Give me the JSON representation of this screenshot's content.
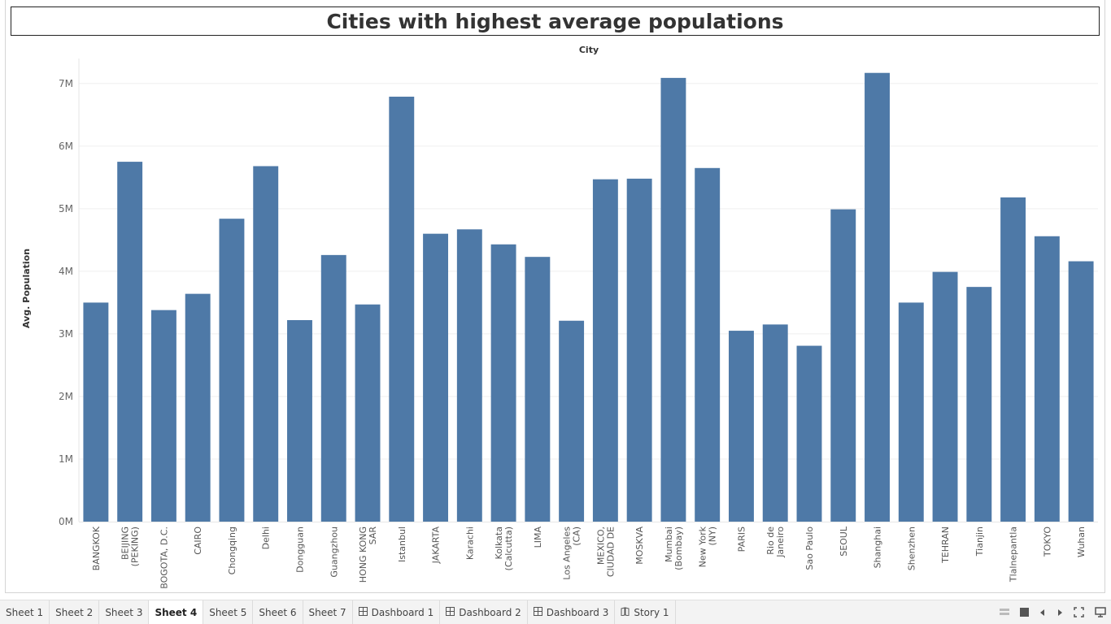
{
  "window_title": "Cities with highest average populations",
  "chart_data": {
    "type": "bar",
    "title": "Cities with highest average populations",
    "xlabel": "City",
    "ylabel": "Avg. Population",
    "ylim": [
      0,
      7400000
    ],
    "yticks": [
      {
        "value": 0,
        "label": "0M"
      },
      {
        "value": 1000000,
        "label": "1M"
      },
      {
        "value": 2000000,
        "label": "2M"
      },
      {
        "value": 3000000,
        "label": "3M"
      },
      {
        "value": 4000000,
        "label": "4M"
      },
      {
        "value": 5000000,
        "label": "5M"
      },
      {
        "value": 6000000,
        "label": "6M"
      },
      {
        "value": 7000000,
        "label": "7M"
      }
    ],
    "grid": true,
    "bar_color": "#4e79a7",
    "categories": [
      [
        "BANGKOK"
      ],
      [
        "BEIJING",
        "(PEKING)"
      ],
      [
        "BOGOTA, D.C."
      ],
      [
        "CAIRO"
      ],
      [
        "Chongqing"
      ],
      [
        "Delhi"
      ],
      [
        "Dongguan"
      ],
      [
        "Guangzhou"
      ],
      [
        "HONG KONG",
        "SAR"
      ],
      [
        "Istanbul"
      ],
      [
        "JAKARTA"
      ],
      [
        "Karachi"
      ],
      [
        "Kolkata",
        "(Calcutta)"
      ],
      [
        "LIMA"
      ],
      [
        "Los Angeles",
        "(CA)"
      ],
      [
        "MEXICO,",
        "CIUDAD DE"
      ],
      [
        "MOSKVA"
      ],
      [
        "Mumbai",
        "(Bombay)"
      ],
      [
        "New York",
        "(NY)"
      ],
      [
        "PARIS"
      ],
      [
        "Rio de",
        "Janeiro"
      ],
      [
        "Sao Paulo"
      ],
      [
        "SEOUL"
      ],
      [
        "Shanghai"
      ],
      [
        "Shenzhen"
      ],
      [
        "TEHRAN"
      ],
      [
        "Tianjin"
      ],
      [
        "Tlalnepantla"
      ],
      [
        "TOKYO"
      ],
      [
        "Wuhan"
      ]
    ],
    "values": [
      3500000,
      5750000,
      3380000,
      3640000,
      4840000,
      5680000,
      3220000,
      4260000,
      3470000,
      6790000,
      4600000,
      4670000,
      4430000,
      4230000,
      3210000,
      5470000,
      5480000,
      7090000,
      5650000,
      3050000,
      3150000,
      2810000,
      4990000,
      7170000,
      3500000,
      3990000,
      3750000,
      5180000,
      4560000,
      4160000
    ]
  },
  "tabs": [
    {
      "label": "Sheet 1",
      "icon": "",
      "active": false
    },
    {
      "label": "Sheet 2",
      "icon": "",
      "active": false
    },
    {
      "label": "Sheet 3",
      "icon": "",
      "active": false
    },
    {
      "label": "Sheet 4",
      "icon": "",
      "active": true
    },
    {
      "label": "Sheet 5",
      "icon": "",
      "active": false
    },
    {
      "label": "Sheet 6",
      "icon": "",
      "active": false
    },
    {
      "label": "Sheet 7",
      "icon": "",
      "active": false
    },
    {
      "label": "Dashboard 1",
      "icon": "dashboard-icon",
      "active": false
    },
    {
      "label": "Dashboard 2",
      "icon": "dashboard-icon",
      "active": false
    },
    {
      "label": "Dashboard 3",
      "icon": "dashboard-icon",
      "active": false
    },
    {
      "label": "Story 1",
      "icon": "story-icon",
      "active": false
    }
  ],
  "controls": [
    "show-filmstrip-icon",
    "show-tabs-icon",
    "previous-sheet-icon",
    "next-sheet-icon",
    "presentation-mode-icon",
    "presentation-screen-icon"
  ]
}
